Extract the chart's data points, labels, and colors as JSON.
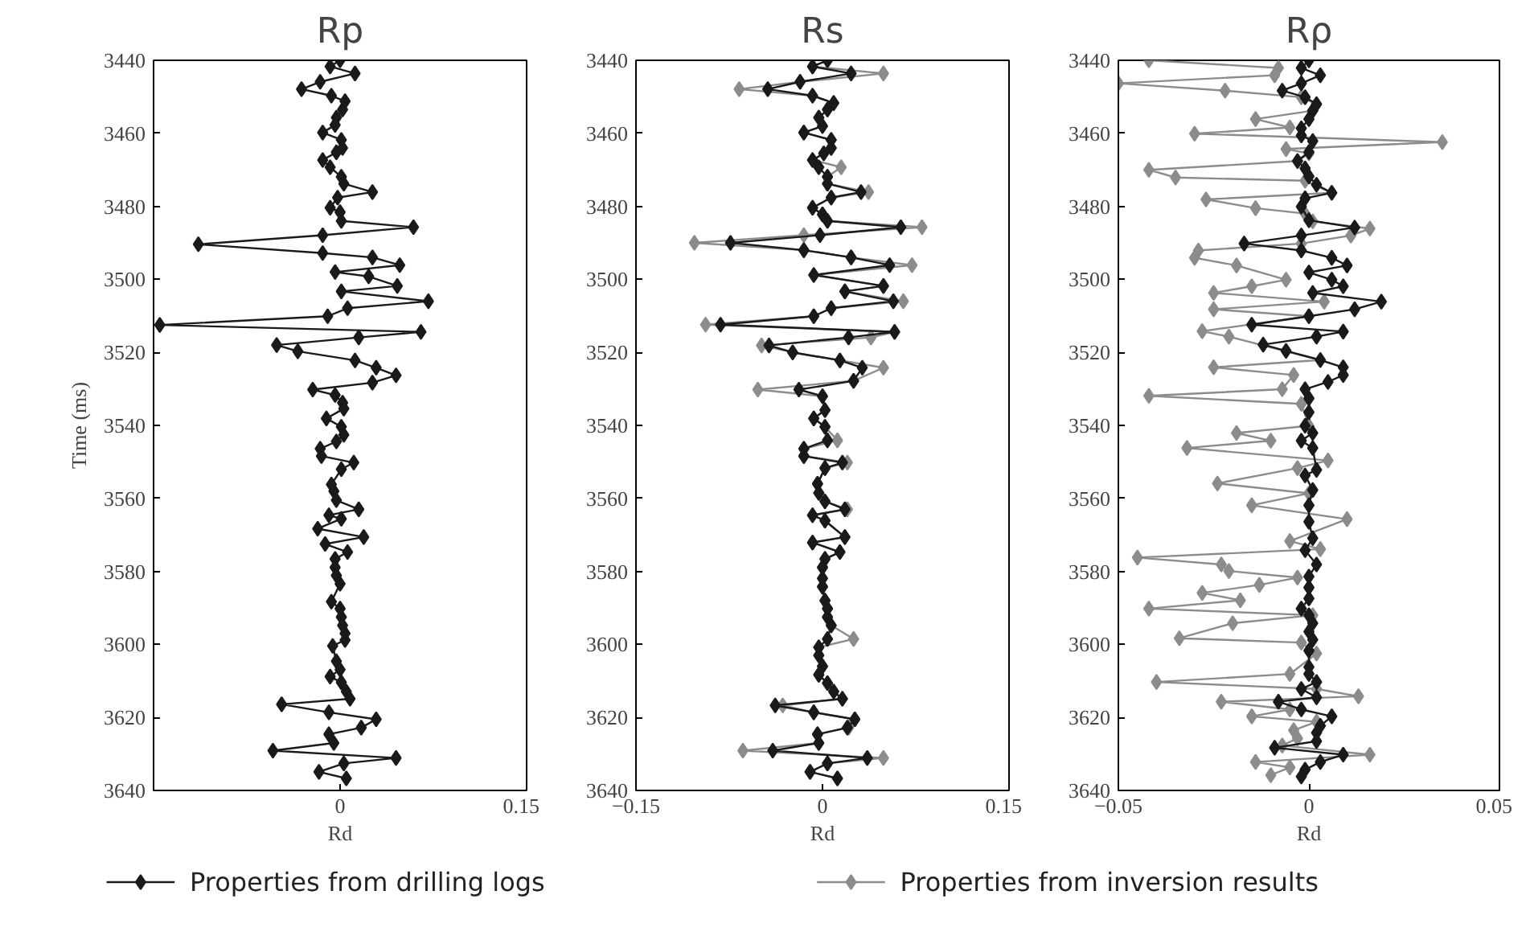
{
  "chart_data": [
    {
      "type": "line",
      "title": "Rp",
      "xlabel": "Rd",
      "ylabel": "Time (ms)",
      "marker": "diamond",
      "xlim": [
        -0.15,
        0.15
      ],
      "xticks": [
        0,
        0.15
      ],
      "ylim": [
        3640,
        3440
      ],
      "yticks": [
        3440,
        3460,
        3480,
        3500,
        3520,
        3540,
        3560,
        3580,
        3600,
        3620,
        3640
      ],
      "series": [
        {
          "color": "#1a1a1a",
          "x": [
            0,
            -0.008,
            0.012,
            -0.016,
            -0.031,
            -0.007,
            0.004,
            0.002,
            -0.003,
            -0.004,
            -0.014,
            0.001,
            0.002,
            -0.003,
            -0.014,
            -0.008,
            0.001,
            0.003,
            0.026,
            -0.002,
            -0.008,
            0,
            0.001,
            0.059,
            -0.014,
            -0.114,
            -0.014,
            0.026,
            0.048,
            -0.004,
            0.023,
            0.046,
            0.001,
            0.071,
            0.006,
            -0.01,
            -0.145,
            0.065,
            0.015,
            -0.051,
            -0.034,
            0.012,
            0.029,
            0.045,
            0.026,
            -0.022,
            -0.004,
            0.002,
            0.003,
            -0.011,
            0.001,
            0.003,
            -0.003,
            -0.016,
            -0.015,
            0.011,
            0.001,
            -0.007,
            -0.005,
            -0.003,
            0.015,
            -0.009,
            0.001,
            -0.018,
            0.019,
            -0.012,
            0.006,
            -0.004,
            -0.004,
            -0.003,
            0,
            -0.007,
            0,
            0.001,
            0.002,
            0.004,
            0.004,
            -0.006,
            -0.003,
            0,
            -0.008,
            0.001,
            0.005,
            0.008,
            -0.047,
            -0.009,
            0.029,
            0.017,
            -0.009,
            -0.005,
            -0.054,
            0.045,
            0.003,
            -0.017,
            0.005
          ],
          "values": [
            3440,
            3441.7,
            3443.6,
            3445.9,
            3447.9,
            3449.7,
            3451.2,
            3453.5,
            3455.7,
            3457.7,
            3459.8,
            3461.8,
            3464,
            3465.2,
            3467.3,
            3469.3,
            3471.9,
            3473.8,
            3476.1,
            3477.6,
            3480.4,
            3481.6,
            3484,
            3485.7,
            3487.9,
            3490.4,
            3492.8,
            3494,
            3496.1,
            3498,
            3499.2,
            3501.8,
            3503.3,
            3506,
            3507.9,
            3510.1,
            3512.5,
            3514.4,
            3515.9,
            3518,
            3519.7,
            3522.2,
            3524.2,
            3526.3,
            3528.3,
            3530.2,
            3531.7,
            3533.8,
            3535.4,
            3538.1,
            3540.4,
            3542.6,
            3544.4,
            3546.4,
            3548.4,
            3550.2,
            3552,
            3556.2,
            3558,
            3560.5,
            3563,
            3564.6,
            3565.6,
            3568.3,
            3570.6,
            3572.5,
            3574.7,
            3576.6,
            3578.9,
            3581.1,
            3583.4,
            3588.3,
            3590.2,
            3592.5,
            3594.8,
            3597,
            3598.8,
            3600.4,
            3604.6,
            3606.9,
            3608.8,
            3610.4,
            3612.9,
            3614.9,
            3616.4,
            3618.6,
            3620.5,
            3622.8,
            3624.6,
            3627,
            3629.1,
            3631.1,
            3632.6,
            3634.9,
            3636.7
          ]
        }
      ]
    },
    {
      "type": "line",
      "title": "Rs",
      "xlabel": "Rd",
      "marker": "diamond",
      "xlim": [
        -0.15,
        0.15
      ],
      "xticks": [
        {
          "value": -0.15,
          "label": "−0.15"
        },
        0,
        0.15
      ],
      "ylim": [
        3640,
        3440
      ],
      "yticks": [
        3440,
        3460,
        3480,
        3500,
        3520,
        3540,
        3560,
        3580,
        3600,
        3620,
        3640
      ],
      "series": [
        {
          "color": "#1a1a1a",
          "x": [
            0.004,
            -0.008,
            0.023,
            -0.018,
            -0.044,
            -0.008,
            0.009,
            0.004,
            -0.003,
            0,
            -0.015,
            0.007,
            0.007,
            0.001,
            -0.008,
            -0.003,
            0.004,
            0.004,
            0.031,
            0.007,
            -0.008,
            0,
            0.004,
            0.063,
            -0.002,
            -0.074,
            -0.015,
            0.023,
            0.054,
            -0.007,
            0.049,
            0.018,
            0.057,
            0.007,
            -0.007,
            -0.082,
            0.058,
            0.021,
            -0.043,
            -0.024,
            0.014,
            0.032,
            0.025,
            -0.019,
            0,
            0.002,
            -0.007,
            0.002,
            0.004,
            -0.015,
            -0.015,
            0.016,
            0.002,
            -0.004,
            -0.003,
            0.002,
            0.018,
            -0.008,
            0.002,
            0.018,
            -0.008,
            0.014,
            0.002,
            0,
            0,
            0,
            0.002,
            0.004,
            0.004,
            0.007,
            0.004,
            -0.003,
            -0.003,
            0,
            -0.003,
            0.004,
            0.009,
            0.016,
            -0.038,
            -0.007,
            0.026,
            0.02,
            -0.004,
            -0.003,
            -0.04,
            0.036,
            0.004,
            -0.01,
            0.012
          ],
          "values": [
            3440,
            3441.7,
            3443.6,
            3445.9,
            3447.9,
            3449.7,
            3451.7,
            3453.5,
            3455.7,
            3458,
            3459.8,
            3461.8,
            3464,
            3465.5,
            3467.3,
            3469.3,
            3471.9,
            3473.8,
            3476.1,
            3477.6,
            3480.4,
            3482.2,
            3484,
            3485.7,
            3487.9,
            3490,
            3492,
            3494,
            3496.1,
            3498.8,
            3501.8,
            3503.3,
            3506,
            3507.9,
            3510.1,
            3512.4,
            3514.4,
            3515.9,
            3518.1,
            3520,
            3522.2,
            3524.2,
            3527.8,
            3530.2,
            3532,
            3535.8,
            3538.1,
            3540.4,
            3544.1,
            3546.4,
            3548.4,
            3550.2,
            3551.7,
            3556,
            3558.5,
            3560.8,
            3563,
            3564.6,
            3566.1,
            3570.6,
            3572.1,
            3574.7,
            3576.6,
            3578.9,
            3581.9,
            3584.2,
            3588,
            3590.2,
            3592.5,
            3594.8,
            3598.5,
            3600.8,
            3603,
            3606,
            3608.3,
            3610.6,
            3612.9,
            3614.9,
            3616.7,
            3618.6,
            3620.5,
            3622.8,
            3624.6,
            3627,
            3629.1,
            3631.1,
            3632.6,
            3634.9,
            3636.7
          ]
        },
        {
          "color": "#8c8c8c",
          "x": [
            0.004,
            -0.008,
            0.049,
            -0.018,
            -0.067,
            -0.008,
            0.009,
            0.004,
            -0.003,
            0,
            -0.015,
            0.007,
            0.007,
            0.001,
            -0.008,
            0.015,
            0.004,
            0.004,
            0.037,
            0.007,
            -0.008,
            0,
            0.004,
            0.08,
            -0.015,
            -0.103,
            -0.015,
            0.023,
            0.072,
            -0.007,
            0.049,
            0.018,
            0.065,
            0.007,
            -0.007,
            -0.094,
            0.058,
            0.039,
            -0.049,
            -0.024,
            0.014,
            0.049,
            0.025,
            -0.052,
            0,
            0.002,
            -0.007,
            0.002,
            0.012,
            -0.015,
            -0.015,
            0.02,
            0.002,
            -0.004,
            -0.003,
            0.002,
            0.02,
            -0.008,
            0.002,
            0.018,
            -0.008,
            0.014,
            0.002,
            0,
            0,
            0,
            0.002,
            0.004,
            0.004,
            0.007,
            0.025,
            -0.003,
            -0.003,
            0,
            -0.003,
            0.004,
            0.009,
            0.016,
            -0.032,
            -0.007,
            0.026,
            0.021,
            -0.004,
            -0.003,
            -0.064,
            0.049,
            0.004,
            -0.01,
            0.012
          ],
          "values": [
            3440,
            3441.7,
            3443.6,
            3445.9,
            3447.9,
            3449.7,
            3451.7,
            3453.5,
            3455.7,
            3458,
            3459.8,
            3461.8,
            3464,
            3465.5,
            3467.3,
            3469.3,
            3471.9,
            3473.8,
            3476.1,
            3477.6,
            3480.4,
            3482.2,
            3484,
            3485.7,
            3487.9,
            3490,
            3492,
            3494,
            3496.1,
            3498.8,
            3501.8,
            3503.3,
            3506,
            3507.9,
            3510.1,
            3512.4,
            3514.4,
            3515.9,
            3518.1,
            3520,
            3522.2,
            3524.2,
            3527.8,
            3530.2,
            3532,
            3535.8,
            3538.1,
            3540.4,
            3544.1,
            3546.4,
            3548.4,
            3550.2,
            3551.7,
            3556,
            3558.5,
            3560.8,
            3563,
            3564.6,
            3566.1,
            3570.6,
            3572.1,
            3574.7,
            3576.6,
            3578.9,
            3581.9,
            3584.2,
            3588,
            3590.2,
            3592.5,
            3594.8,
            3598.5,
            3600.8,
            3603,
            3606,
            3608.3,
            3610.6,
            3612.9,
            3614.9,
            3616.7,
            3618.6,
            3620.5,
            3622.8,
            3624.6,
            3627,
            3629.1,
            3631.1,
            3632.6,
            3634.9,
            3636.7
          ]
        }
      ]
    },
    {
      "type": "line",
      "title": "Rρ",
      "xlabel": "Rd",
      "marker": "diamond",
      "legend": "bottom",
      "xlim": [
        -0.05,
        0.05
      ],
      "xticks": [
        {
          "value": -0.05,
          "label": "−0.05"
        },
        0,
        0.05
      ],
      "ylim": [
        3640,
        3440
      ],
      "yticks": [
        3440,
        3460,
        3480,
        3500,
        3520,
        3540,
        3560,
        3580,
        3600,
        3620,
        3640
      ],
      "series": [
        {
          "name": "Properties from drilling logs",
          "color": "#1a1a1a",
          "x": [
            0,
            -0.002,
            0.003,
            -0.002,
            -0.007,
            -0.001,
            0.002,
            0.001,
            0,
            -0.002,
            -0.002,
            0.001,
            0,
            -0.003,
            -0.001,
            0,
            0.002,
            0.006,
            -0.001,
            -0.002,
            0,
            0.012,
            -0.002,
            -0.017,
            -0.002,
            0.006,
            0.01,
            0,
            0.006,
            0.009,
            0.001,
            0.019,
            0.012,
            0,
            -0.015,
            0.009,
            0.002,
            -0.012,
            -0.006,
            0.003,
            0.009,
            0.009,
            0.005,
            -0.001,
            0,
            0,
            -0.001,
            0.001,
            -0.002,
            0.001,
            0.002,
            -0.001,
            0.001,
            0,
            0,
            0.001,
            -0.001,
            0.002,
            0,
            0,
            0,
            -0.002,
            0,
            0.001,
            0,
            0.001,
            0,
            0,
            0,
            0.002,
            -0.002,
            0.002,
            -0.008,
            -0.002,
            0.006,
            0.003,
            0.002,
            0.002,
            -0.009,
            0.009,
            0.003,
            -0.001,
            -0.002
          ],
          "values": [
            3440,
            3442.1,
            3444.1,
            3446.3,
            3448.3,
            3450.1,
            3452,
            3453.8,
            3456.1,
            3458.6,
            3460.6,
            3462.1,
            3465.1,
            3467.6,
            3469.6,
            3471.8,
            3474.1,
            3476.3,
            3477.8,
            3480.1,
            3483.8,
            3485.8,
            3488,
            3490.2,
            3492.1,
            3494.1,
            3496.2,
            3498.1,
            3500.1,
            3501.9,
            3503.7,
            3506.1,
            3508.2,
            3510.1,
            3512.4,
            3514.3,
            3515.7,
            3517.9,
            3519.6,
            3522.1,
            3524.1,
            3526.2,
            3528.1,
            3530.1,
            3532.6,
            3536.4,
            3540.1,
            3542.1,
            3544.2,
            3546.2,
            3552.2,
            3553.7,
            3557.7,
            3561.9,
            3566.4,
            3570.9,
            3574.2,
            3578.1,
            3581.4,
            3584.4,
            3587.4,
            3590.2,
            3592,
            3594.2,
            3596.5,
            3598.7,
            3601.7,
            3606.2,
            3608.1,
            3610.3,
            3612.2,
            3614.5,
            3615.7,
            3617.8,
            3619.7,
            3622.3,
            3624.2,
            3626.5,
            3628.3,
            3630.2,
            3632.2,
            3634.3,
            3636.2
          ]
        },
        {
          "name": "Properties from inversion results",
          "color": "#8c8c8c",
          "x": [
            -0.042,
            -0.008,
            -0.009,
            -0.05,
            -0.022,
            -0.002,
            0.002,
            0.001,
            -0.014,
            -0.005,
            -0.03,
            0.035,
            -0.006,
            0,
            -0.003,
            -0.042,
            -0.035,
            -0.001,
            0.006,
            -0.027,
            -0.014,
            -0.001,
            0.001,
            0.016,
            0.011,
            -0.002,
            -0.029,
            -0.03,
            -0.019,
            -0.006,
            -0.015,
            -0.025,
            0.004,
            -0.025,
            0,
            -0.028,
            -0.021,
            0.003,
            -0.025,
            -0.004,
            -0.007,
            -0.042,
            -0.002,
            0,
            -0.019,
            -0.01,
            -0.032,
            0.005,
            -0.003,
            -0.024,
            0,
            -0.015,
            0.01,
            -0.005,
            0.003,
            -0.045,
            -0.023,
            -0.021,
            -0.003,
            -0.013,
            -0.028,
            -0.018,
            -0.042,
            0.001,
            -0.02,
            -0.034,
            -0.002,
            0.002,
            -0.005,
            -0.04,
            0.002,
            0.013,
            -0.023,
            -0.005,
            -0.015,
            0.002,
            -0.004,
            -0.003,
            -0.007,
            0.016,
            -0.014,
            -0.005,
            -0.01
          ],
          "values": [
            3440,
            3442.1,
            3444.1,
            3446.3,
            3448.3,
            3450.1,
            3452,
            3453.8,
            3456.1,
            3458.4,
            3460.1,
            3462.4,
            3464.3,
            3465.5,
            3467.6,
            3470,
            3472.1,
            3473,
            3476.3,
            3478.1,
            3480.5,
            3482,
            3484.1,
            3486.1,
            3488,
            3490.2,
            3492.1,
            3494.1,
            3496.2,
            3500.1,
            3501.9,
            3503.7,
            3506.1,
            3508.2,
            3510.1,
            3514.2,
            3515.7,
            3522.1,
            3524.1,
            3526.2,
            3530.1,
            3531.9,
            3534.1,
            3540.1,
            3542.1,
            3544.2,
            3546.2,
            3549.6,
            3551.7,
            3555.9,
            3558.6,
            3561.9,
            3565.7,
            3571.7,
            3573.9,
            3576.2,
            3578.1,
            3579.9,
            3581.7,
            3583.7,
            3585.9,
            3587.9,
            3590.2,
            3592,
            3594.2,
            3598.3,
            3599.5,
            3602.5,
            3608.1,
            3610.3,
            3612.2,
            3614.2,
            3615.7,
            3617.8,
            3619.7,
            3621.2,
            3623.5,
            3625.7,
            3627.7,
            3630.2,
            3632.2,
            3633.7,
            3635.8
          ]
        }
      ]
    }
  ]
}
